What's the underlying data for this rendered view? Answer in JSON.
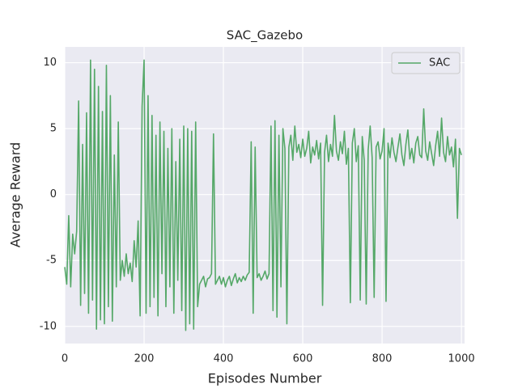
{
  "chart_data": {
    "type": "line",
    "title": "SAC_Gazebo",
    "x_label": "Episodes Number",
    "y_label": "Average Reward",
    "x": [
      0,
      5,
      10,
      15,
      20,
      25,
      30,
      35,
      40,
      45,
      50,
      55,
      60,
      65,
      70,
      75,
      80,
      85,
      90,
      95,
      100,
      105,
      110,
      115,
      120,
      125,
      130,
      135,
      140,
      145,
      150,
      155,
      160,
      165,
      170,
      175,
      180,
      185,
      190,
      195,
      200,
      205,
      210,
      215,
      220,
      225,
      230,
      235,
      240,
      245,
      250,
      255,
      260,
      265,
      270,
      275,
      280,
      285,
      290,
      295,
      300,
      305,
      310,
      315,
      320,
      325,
      330,
      335,
      340,
      345,
      350,
      355,
      360,
      365,
      370,
      375,
      380,
      385,
      390,
      395,
      400,
      405,
      410,
      415,
      420,
      425,
      430,
      435,
      440,
      445,
      450,
      455,
      460,
      465,
      470,
      475,
      480,
      485,
      490,
      495,
      500,
      505,
      510,
      515,
      520,
      525,
      530,
      535,
      540,
      545,
      550,
      555,
      560,
      565,
      570,
      575,
      580,
      585,
      590,
      595,
      600,
      605,
      610,
      615,
      620,
      625,
      630,
      635,
      640,
      645,
      650,
      655,
      660,
      665,
      670,
      675,
      680,
      685,
      690,
      695,
      700,
      705,
      710,
      715,
      720,
      725,
      730,
      735,
      740,
      745,
      750,
      755,
      760,
      765,
      770,
      775,
      780,
      785,
      790,
      795,
      800,
      805,
      810,
      815,
      820,
      825,
      830,
      835,
      840,
      845,
      850,
      855,
      860,
      865,
      870,
      875,
      880,
      885,
      890,
      895,
      900,
      905,
      910,
      915,
      920,
      925,
      930,
      935,
      940,
      945,
      950,
      955,
      960,
      965,
      970,
      975,
      980,
      985,
      990,
      995,
      1000
    ],
    "series": [
      {
        "name": "SAC",
        "color": "#55a868",
        "values": [
          -5.5,
          -6.8,
          -1.6,
          -7.0,
          -3.0,
          -4.5,
          -2.8,
          7.1,
          -8.4,
          3.8,
          -7.5,
          6.2,
          -9.0,
          10.2,
          -8.0,
          9.5,
          -10.2,
          8.2,
          -9.5,
          6.3,
          -9.8,
          9.8,
          -8.5,
          7.5,
          -9.6,
          3.0,
          -7.0,
          5.5,
          -6.5,
          -5.0,
          -6.2,
          -4.5,
          -6.0,
          -5.2,
          -6.6,
          -3.5,
          -5.5,
          -2.0,
          -9.2,
          6.7,
          10.2,
          -9.0,
          7.5,
          -8.5,
          6.0,
          -7.8,
          4.5,
          -9.2,
          5.5,
          -6.0,
          4.8,
          -8.5,
          3.5,
          -7.0,
          5.0,
          -9.0,
          2.5,
          -6.5,
          4.2,
          -8.8,
          5.2,
          -10.3,
          5.0,
          -9.8,
          4.8,
          -10.2,
          5.5,
          -8.5,
          -6.8,
          -6.5,
          -6.2,
          -7.0,
          -6.4,
          -6.3,
          -6.0,
          4.6,
          -6.8,
          -6.5,
          -6.2,
          -6.8,
          -6.3,
          -7.0,
          -6.5,
          -6.2,
          -6.9,
          -6.4,
          -6.0,
          -6.7,
          -6.3,
          -6.6,
          -6.2,
          -6.5,
          -6.1,
          -5.9,
          4.0,
          -9.0,
          3.6,
          -6.3,
          -6.0,
          -6.5,
          -6.2,
          -5.8,
          -6.4,
          -6.0,
          5.2,
          -8.8,
          5.6,
          -9.3,
          4.5,
          -7.0,
          5.0,
          3.5,
          -9.8,
          3.6,
          4.5,
          2.6,
          5.2,
          3.2,
          3.8,
          2.8,
          4.2,
          2.9,
          3.5,
          4.8,
          2.4,
          3.6,
          3.0,
          4.1,
          2.7,
          3.9,
          -8.4,
          3.2,
          4.5,
          2.5,
          3.8,
          2.9,
          6.0,
          3.3,
          2.6,
          4.0,
          3.1,
          4.8,
          2.3,
          3.5,
          -8.2,
          3.9,
          5.0,
          2.5,
          3.7,
          -8.0,
          4.4,
          2.6,
          -8.3,
          3.4,
          5.2,
          2.8,
          -7.8,
          3.6,
          4.0,
          2.7,
          3.3,
          5.0,
          -8.1,
          3.9,
          2.8,
          4.3,
          3.2,
          2.5,
          3.6,
          4.6,
          3.0,
          2.2,
          3.8,
          4.9,
          2.7,
          3.5,
          2.4,
          3.9,
          4.4,
          3.0,
          2.8,
          6.5,
          3.3,
          2.6,
          4.0,
          3.1,
          2.2,
          3.7,
          4.8,
          2.9,
          5.8,
          3.2,
          2.5,
          4.4,
          3.0,
          3.6,
          2.1,
          4.2,
          -1.8,
          3.5,
          3.0
        ]
      }
    ],
    "xlim": [
      0,
      1008
    ],
    "xticks": [
      0,
      200,
      400,
      600,
      800,
      1000
    ],
    "ylim": [
      -11.3,
      11.2
    ],
    "yticks": [
      -10,
      -5,
      0,
      5,
      10
    ],
    "grid": true,
    "legend": "upper right"
  }
}
